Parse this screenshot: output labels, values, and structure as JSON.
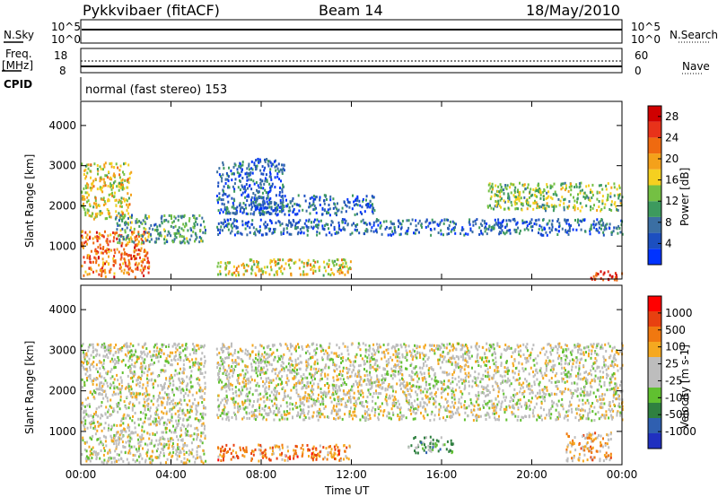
{
  "header": {
    "title": "Pykkvibaer (fitACF)",
    "beam": "Beam 14",
    "date": "18/May/2010"
  },
  "top_panels": {
    "nsky_label": "N.Sky",
    "nsearch_label": "N.Search",
    "freq_label_1": "Freq.",
    "freq_label_2": "[MHz]",
    "nave_label": "Nave",
    "cpid_label": "CPID",
    "cpid_value": "normal (fast stereo) 153",
    "noise_ticks": [
      "10^5",
      "10^0"
    ],
    "freq_ticks": [
      "18",
      "8"
    ],
    "nave_ticks": [
      "60",
      "0"
    ]
  },
  "colors": {
    "power": [
      "#0033ff",
      "#1c4fc0",
      "#3b6fa3",
      "#3d9a5e",
      "#74c043",
      "#f5d020",
      "#f4a11a",
      "#ef6a10",
      "#e8321a",
      "#d00000"
    ],
    "velocity": [
      "#2030c0",
      "#2f5fb0",
      "#2f8040",
      "#60c030",
      "#bdbdbd",
      "#bdbdbd",
      "#f5a820",
      "#f07810",
      "#e84010",
      "#ff0000"
    ]
  },
  "chart_data": [
    {
      "type": "heatmap",
      "panel": "power",
      "xlabel": "Time UT",
      "ylabel": "Slant Range [km]",
      "x_ticks": [
        "00:00",
        "04:00",
        "08:00",
        "12:00",
        "16:00",
        "20:00",
        "00:00"
      ],
      "y_ticks": [
        1000,
        2000,
        3000,
        4000
      ],
      "xlim_hours": [
        0,
        24
      ],
      "ylim_km": [
        180,
        4600
      ],
      "colorbar_label": "Power [dB]",
      "colorbar_ticks": [
        "4",
        "8",
        "12",
        "16",
        "20",
        "24",
        "28"
      ],
      "colorbar_range": [
        0,
        30
      ],
      "features": [
        {
          "t": [
            0.0,
            3.0
          ],
          "r": [
            250,
            1400
          ],
          "level": 0.75
        },
        {
          "t": [
            0.0,
            2.2
          ],
          "r": [
            1700,
            3100
          ],
          "level": 0.55
        },
        {
          "t": [
            1.5,
            5.5
          ],
          "r": [
            1100,
            1800
          ],
          "level": 0.35
        },
        {
          "t": [
            6.0,
            9.0
          ],
          "r": [
            1800,
            3200
          ],
          "level": 0.2
        },
        {
          "t": [
            6.0,
            24.0
          ],
          "r": [
            1300,
            1700
          ],
          "level": 0.2
        },
        {
          "t": [
            7.5,
            13.0
          ],
          "r": [
            1800,
            2300
          ],
          "level": 0.2
        },
        {
          "t": [
            6.0,
            12.0
          ],
          "r": [
            300,
            700
          ],
          "level": 0.55
        },
        {
          "t": [
            18.0,
            24.0
          ],
          "r": [
            1900,
            2600
          ],
          "level": 0.45
        },
        {
          "t": [
            22.5,
            24.0
          ],
          "r": [
            180,
            400
          ],
          "level": 0.85
        }
      ]
    },
    {
      "type": "heatmap",
      "panel": "velocity",
      "xlabel": "Time UT",
      "ylabel": "Slant Range [km]",
      "x_ticks": [
        "00:00",
        "04:00",
        "08:00",
        "12:00",
        "16:00",
        "20:00",
        "00:00"
      ],
      "y_ticks": [
        1000,
        2000,
        3000,
        4000
      ],
      "xlim_hours": [
        0,
        24
      ],
      "ylim_km": [
        180,
        4600
      ],
      "colorbar_label": "Velocity [m s-1]",
      "colorbar_ticks": [
        "1000",
        "500",
        "100",
        "25",
        "-25",
        "-100",
        "-500",
        "-1000"
      ],
      "features": [
        {
          "t": [
            0.0,
            5.5
          ],
          "r": [
            250,
            3200
          ],
          "level": 0.5
        },
        {
          "t": [
            6.0,
            24.0
          ],
          "r": [
            1300,
            3200
          ],
          "level": 0.5
        },
        {
          "t": [
            6.0,
            12.0
          ],
          "r": [
            300,
            700
          ],
          "level": 0.75
        },
        {
          "t": [
            14.5,
            16.5
          ],
          "r": [
            500,
            900
          ],
          "level": 0.35
        },
        {
          "t": [
            21.5,
            23.5
          ],
          "r": [
            300,
            1000
          ],
          "level": 0.65
        }
      ]
    }
  ]
}
